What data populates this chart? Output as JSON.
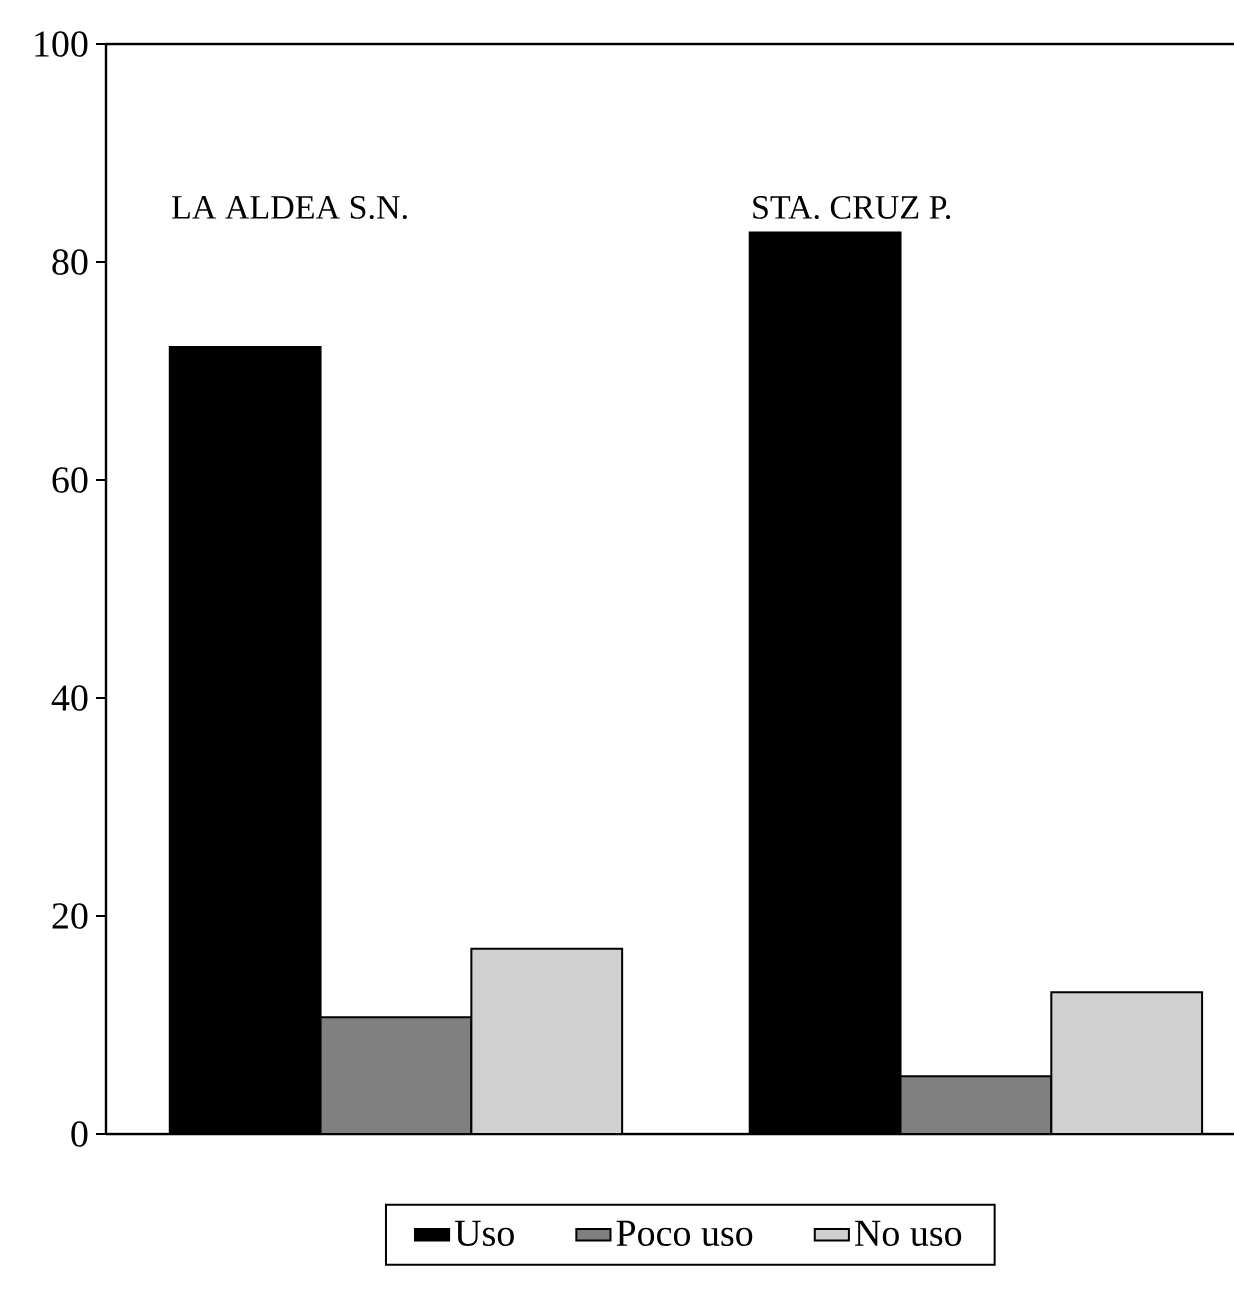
{
  "chart_data": {
    "type": "bar",
    "categories": [
      "LA ALDEA S.N.",
      "STA. CRUZ P."
    ],
    "series": [
      {
        "name": "Uso",
        "color": "#000000",
        "values": [
          72.2,
          82.7
        ]
      },
      {
        "name": "Poco uso",
        "color": "#808080",
        "values": [
          10.7,
          5.3
        ]
      },
      {
        "name": "No uso",
        "color": "#d0d0d0",
        "values": [
          17.0,
          13.0
        ]
      }
    ],
    "ylim": [
      0,
      100
    ],
    "yticks": [
      0,
      20,
      40,
      60,
      80,
      100
    ],
    "grid": false,
    "legend": "bottom"
  }
}
